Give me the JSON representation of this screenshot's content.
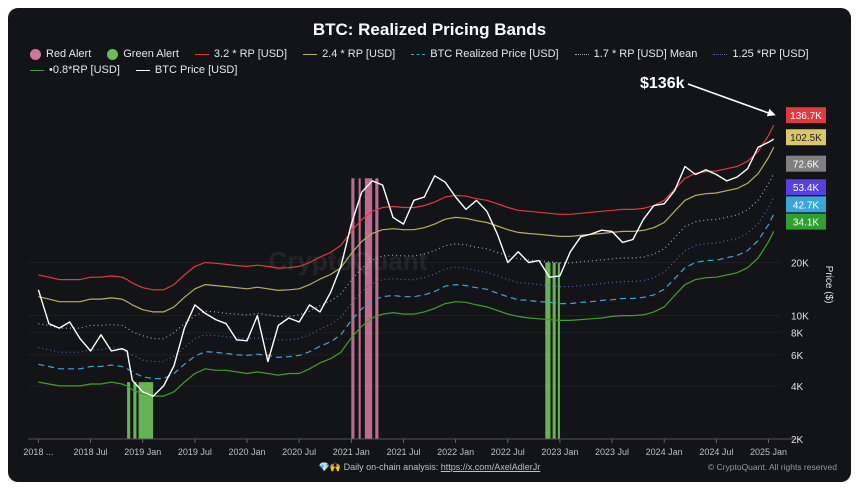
{
  "chart_data": {
    "type": "line",
    "title": "BTC: Realized Pricing Bands",
    "ylabel": "Price ($)",
    "yscale": "log",
    "ylim": [
      2000,
      200000
    ],
    "x_ticks": [
      "2018 ...",
      "2018 Jul",
      "2019 Jan",
      "2019 Jul",
      "2020 Jan",
      "2020 Jul",
      "2021 Jan",
      "2021 Jul",
      "2022 Jan",
      "2022 Jul",
      "2023 Jan",
      "2023 Jul",
      "2024 Jan",
      "2024 Jul",
      "2025 Jan"
    ],
    "y_ticks": [
      {
        "v": 20000,
        "label": "20K"
      },
      {
        "v": 10000,
        "label": "10K"
      },
      {
        "v": 8000,
        "label": "8K"
      },
      {
        "v": 6000,
        "label": "6K"
      },
      {
        "v": 4000,
        "label": "4K"
      },
      {
        "v": 2000,
        "label": "2K"
      }
    ],
    "x": [
      2018.0,
      2018.1,
      2018.2,
      2018.3,
      2018.4,
      2018.5,
      2018.6,
      2018.7,
      2018.8,
      2018.85,
      2018.9,
      2019.0,
      2019.1,
      2019.2,
      2019.3,
      2019.4,
      2019.5,
      2019.6,
      2019.7,
      2019.8,
      2019.9,
      2020.0,
      2020.1,
      2020.2,
      2020.3,
      2020.4,
      2020.5,
      2020.6,
      2020.7,
      2020.8,
      2020.9,
      2021.0,
      2021.1,
      2021.2,
      2021.3,
      2021.4,
      2021.5,
      2021.6,
      2021.7,
      2021.8,
      2021.9,
      2022.0,
      2022.1,
      2022.2,
      2022.3,
      2022.4,
      2022.5,
      2022.6,
      2022.7,
      2022.8,
      2022.9,
      2023.0,
      2023.1,
      2023.2,
      2023.3,
      2023.4,
      2023.5,
      2023.6,
      2023.7,
      2023.8,
      2023.9,
      2024.0,
      2024.1,
      2024.2,
      2024.3,
      2024.4,
      2024.5,
      2024.6,
      2024.7,
      2024.8,
      2024.9,
      2025.0,
      2025.05
    ],
    "series": [
      {
        "name": "3.2 * RP [USD]",
        "color": "#e0393e",
        "dash": "",
        "values": [
          17000,
          16500,
          16000,
          16000,
          16000,
          16500,
          16500,
          16800,
          16500,
          16000,
          15300,
          14400,
          14000,
          14000,
          15000,
          17000,
          19000,
          20000,
          19800,
          19500,
          19200,
          19000,
          19300,
          19000,
          18600,
          18700,
          19000,
          20000,
          21500,
          22800,
          25000,
          30000,
          35000,
          39000,
          41000,
          41500,
          41000,
          41000,
          42000,
          44000,
          47000,
          48000,
          47500,
          46000,
          45000,
          43000,
          41000,
          39500,
          39000,
          38500,
          38000,
          37500,
          37500,
          38000,
          38500,
          39000,
          39500,
          40000,
          40000,
          40500,
          42000,
          45000,
          52000,
          60000,
          64000,
          65500,
          66000,
          68000,
          70000,
          75000,
          85000,
          105000,
          120000
        ]
      },
      {
        "name": "2.4 * RP [USD]",
        "color": "#b8ad64",
        "dash": "",
        "values": [
          12800,
          12400,
          12000,
          12000,
          12000,
          12400,
          12400,
          12600,
          12400,
          12000,
          11500,
          10800,
          10500,
          10500,
          11200,
          12700,
          14200,
          15000,
          14800,
          14600,
          14400,
          14200,
          14500,
          14200,
          13900,
          14000,
          14200,
          15000,
          16100,
          17100,
          18700,
          22500,
          26300,
          29200,
          30700,
          31100,
          30700,
          30700,
          31500,
          33000,
          35200,
          36000,
          35600,
          34500,
          33700,
          32200,
          30700,
          29600,
          29200,
          28900,
          28500,
          28100,
          28100,
          28500,
          28900,
          29200,
          29600,
          30000,
          30000,
          30400,
          31500,
          33700,
          39000,
          45000,
          48000,
          49100,
          49500,
          51000,
          52500,
          56200,
          63700,
          78700,
          90000
        ]
      },
      {
        "name": "1.7 * RP [USD] Mean",
        "color": "#a0a8b8",
        "dash": "1,3",
        "values": [
          9000,
          8800,
          8500,
          8500,
          8500,
          8800,
          8800,
          8900,
          8800,
          8500,
          8100,
          7700,
          7400,
          7400,
          8000,
          9000,
          10000,
          10600,
          10500,
          10300,
          10200,
          10100,
          10300,
          10100,
          9900,
          9900,
          10100,
          10600,
          11400,
          12100,
          13300,
          15900,
          18600,
          20700,
          21800,
          22000,
          21800,
          21800,
          22300,
          23400,
          24900,
          25500,
          25200,
          24400,
          23900,
          22800,
          21800,
          21000,
          20700,
          20400,
          20200,
          19900,
          19900,
          20200,
          20400,
          20700,
          21000,
          21200,
          21200,
          21500,
          22300,
          23900,
          27600,
          31900,
          34000,
          34800,
          35100,
          36100,
          37200,
          39800,
          45100,
          55800,
          63800
        ]
      },
      {
        "name": "1.25 *RP [USD]",
        "color": "#5566a8",
        "dash": "1,3",
        "values": [
          6600,
          6400,
          6200,
          6200,
          6200,
          6400,
          6400,
          6600,
          6400,
          6200,
          6000,
          5600,
          5500,
          5500,
          5900,
          6600,
          7400,
          7800,
          7700,
          7600,
          7500,
          7400,
          7500,
          7400,
          7300,
          7300,
          7400,
          7800,
          8400,
          8900,
          9800,
          11700,
          13700,
          15200,
          16000,
          16200,
          16000,
          16000,
          16400,
          17200,
          18400,
          18800,
          18600,
          18000,
          17600,
          16800,
          16000,
          15400,
          15200,
          15000,
          14800,
          14600,
          14600,
          14800,
          15000,
          15200,
          15400,
          15600,
          15600,
          15800,
          16400,
          17600,
          20300,
          23400,
          25000,
          25600,
          25800,
          26600,
          27300,
          29300,
          33200,
          41000,
          46900
        ]
      },
      {
        "name": "BTC Realized Price [USD]",
        "color": "#3aa6d8",
        "dash": "6,4",
        "values": [
          5300,
          5150,
          5000,
          5000,
          5000,
          5150,
          5150,
          5250,
          5150,
          5000,
          4800,
          4500,
          4400,
          4400,
          4700,
          5300,
          5900,
          6250,
          6200,
          6100,
          6000,
          5950,
          6050,
          5950,
          5800,
          5850,
          5950,
          6250,
          6700,
          7100,
          7800,
          9400,
          10900,
          12200,
          12800,
          13000,
          12800,
          12800,
          13100,
          13700,
          14700,
          15000,
          14800,
          14400,
          14100,
          13400,
          12800,
          12300,
          12200,
          12000,
          11900,
          11700,
          11700,
          11900,
          12000,
          12200,
          12300,
          12500,
          12500,
          12700,
          13100,
          14100,
          16200,
          18700,
          20000,
          20500,
          20600,
          21300,
          21900,
          23400,
          26600,
          32800,
          37500
        ]
      },
      {
        "name": "•0.8*RP [USD]",
        "color": "#3ea02e",
        "dash": "",
        "values": [
          4200,
          4100,
          4000,
          4000,
          4000,
          4100,
          4100,
          4200,
          4100,
          4000,
          3800,
          3600,
          3500,
          3500,
          3700,
          4200,
          4700,
          5000,
          4900,
          4900,
          4800,
          4700,
          4800,
          4700,
          4600,
          4700,
          4700,
          5000,
          5400,
          5700,
          6200,
          7500,
          8700,
          9700,
          10200,
          10400,
          10200,
          10200,
          10500,
          11000,
          11700,
          12000,
          11900,
          11500,
          11200,
          10700,
          10200,
          9900,
          9700,
          9600,
          9500,
          9400,
          9400,
          9500,
          9600,
          9700,
          9900,
          10000,
          10000,
          10100,
          10500,
          11200,
          13000,
          15000,
          16000,
          16400,
          16500,
          17000,
          17500,
          18700,
          21200,
          26200,
          30000
        ]
      },
      {
        "name": "BTC Price [USD]",
        "color": "#ffffff",
        "dash": "",
        "values": [
          14000,
          9000,
          8500,
          9200,
          7400,
          6300,
          7800,
          6300,
          6500,
          6300,
          4300,
          3700,
          3500,
          4000,
          5200,
          8500,
          11500,
          10300,
          9500,
          9000,
          7300,
          7200,
          10000,
          5500,
          8800,
          9700,
          9200,
          11500,
          10500,
          13500,
          19000,
          33000,
          50000,
          58000,
          55000,
          36000,
          33000,
          45000,
          47000,
          62000,
          57000,
          47000,
          40000,
          45000,
          39000,
          29000,
          20000,
          23000,
          20000,
          20500,
          16500,
          16800,
          23000,
          28000,
          29000,
          30500,
          30000,
          26000,
          27000,
          35000,
          42000,
          43000,
          51000,
          70000,
          63000,
          67000,
          63000,
          58000,
          61000,
          68000,
          90000,
          96000,
          100000
        ]
      }
    ],
    "red_alert_ranges": [
      [
        2021.0,
        2021.03
      ],
      [
        2021.07,
        2021.09
      ],
      [
        2021.13,
        2021.2
      ],
      [
        2021.23,
        2021.26
      ]
    ],
    "green_alert_ranges": [
      [
        2018.85,
        2018.88
      ],
      [
        2018.91,
        2018.94
      ],
      [
        2018.96,
        2019.1
      ],
      [
        2022.86,
        2022.91
      ],
      [
        2022.93,
        2022.96
      ],
      [
        2022.98,
        2023.0
      ]
    ],
    "price_labels": [
      {
        "label": "136.7K",
        "value": 136700,
        "color": "#e0393e"
      },
      {
        "label": "102.5K",
        "value": 102500,
        "color": "#d9c76a"
      },
      {
        "label": "72.6K",
        "value": 72600,
        "color": "#808080"
      },
      {
        "label": "53.4K",
        "value": 53400,
        "color": "#5a3fe0"
      },
      {
        "label": "42.7K",
        "value": 42700,
        "color": "#3aa6d8"
      },
      {
        "label": "34.1K",
        "value": 34100,
        "color": "#2fa030"
      }
    ],
    "annotation": "$136k",
    "legend": [
      {
        "label": "Red Alert",
        "kind": "dot",
        "color": "#d0769c"
      },
      {
        "label": "Green Alert",
        "kind": "dot",
        "color": "#6cba58"
      },
      {
        "label": "3.2 * RP [USD]",
        "kind": "line",
        "color": "#e0393e",
        "style": "solid"
      },
      {
        "label": "2.4 * RP [USD]",
        "kind": "line",
        "color": "#b8ad64",
        "style": "solid"
      },
      {
        "label": "BTC Realized Price [USD]",
        "kind": "line",
        "color": "#3aa6d8",
        "style": "dashed"
      },
      {
        "label": "1.7 * RP [USD] Mean",
        "kind": "line",
        "color": "#a0a8b8",
        "style": "dotted"
      },
      {
        "label": "1.25 *RP [USD]",
        "kind": "line",
        "color": "#5566a8",
        "style": "dotted"
      },
      {
        "label": "•0.8*RP [USD]",
        "kind": "line",
        "color": "#3ea02e",
        "style": "solid"
      },
      {
        "label": "BTC Price [USD]",
        "kind": "line",
        "color": "#ffffff",
        "style": "solid"
      }
    ],
    "watermark": "CryptoQuant"
  },
  "footer": {
    "icons": "💎🙌",
    "text": "Daily on-chain analysis:",
    "link": "https://x.com/AxelAdlerJr",
    "copyright": "© CryptoQuant. All rights reserved"
  }
}
